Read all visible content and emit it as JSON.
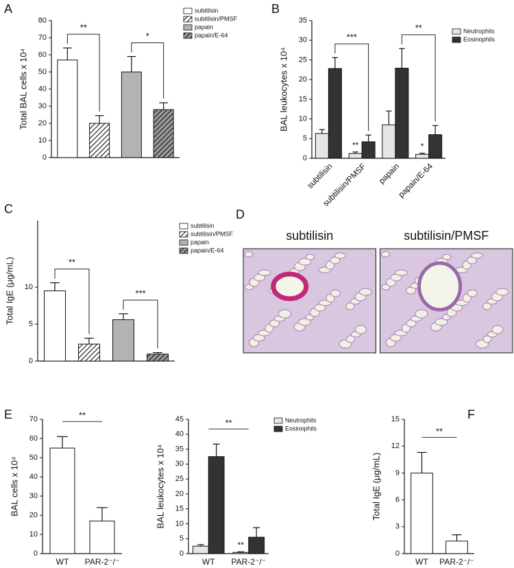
{
  "chart_data": [
    {
      "type": "bar",
      "label": "A",
      "y_label": "Total BAL cells x 10⁴",
      "ylim": [
        0,
        80
      ],
      "yticks": [
        0,
        10,
        20,
        30,
        40,
        50,
        60,
        70,
        80
      ],
      "series": [
        {
          "name": "subtilisin",
          "color": "#ffffff",
          "values": [
            57
          ],
          "errors": [
            7
          ]
        },
        {
          "name": "subtilisin/PMSF",
          "color": "#ffffff",
          "hatch": true,
          "values": [
            20
          ],
          "errors": [
            4.5
          ]
        },
        {
          "name": "papain",
          "color": "#b3b3b3",
          "values": [
            50
          ],
          "errors": [
            9
          ]
        },
        {
          "name": "papain/E-64",
          "color": "#9a9a9a",
          "hatch": true,
          "values": [
            28
          ],
          "errors": [
            4
          ]
        }
      ],
      "annotations": [
        {
          "text": "**",
          "between": [
            0,
            1
          ],
          "style": "bracket"
        },
        {
          "text": "*",
          "between": [
            2,
            3
          ],
          "style": "bracket"
        }
      ]
    },
    {
      "type": "bar",
      "label": "B",
      "y_label": "BAL leukocytes x 10⁴",
      "ylim": [
        0,
        35
      ],
      "yticks": [
        0,
        5,
        10,
        15,
        20,
        25,
        30,
        35
      ],
      "categories": [
        "subtilisin",
        "subtilisin/PMSF",
        "papain",
        "papain/E-64"
      ],
      "series": [
        {
          "name": "Neutrophils",
          "color": "#e6e6e6",
          "values": [
            6.3,
            1.2,
            8.5,
            1.0
          ],
          "errors": [
            1.0,
            0.4,
            3.5,
            0.3
          ]
        },
        {
          "name": "Eosinophils",
          "color": "#333333",
          "values": [
            22.8,
            4.2,
            22.9,
            6.0
          ],
          "errors": [
            2.8,
            1.7,
            5.0,
            2.3
          ]
        }
      ],
      "annotations": [
        {
          "text": "***",
          "between": [
            0,
            1
          ],
          "series": 1,
          "style": "bracket"
        },
        {
          "text": "**",
          "at": 1,
          "series": 0
        },
        {
          "text": "**",
          "between": [
            2,
            3
          ],
          "series": 1,
          "style": "bracket"
        },
        {
          "text": "*",
          "at": 3,
          "series": 0
        }
      ]
    },
    {
      "type": "bar",
      "label": "C",
      "y_label": "Total IgE (μg/mL)",
      "ylim": [
        0,
        19
      ],
      "yticks": [
        0,
        5,
        10
      ],
      "series": [
        {
          "name": "subtilisin",
          "color": "#ffffff",
          "values": [
            9.5
          ],
          "errors": [
            1.1
          ]
        },
        {
          "name": "subtilisin/PMSF",
          "color": "#ffffff",
          "hatch": true,
          "values": [
            2.3
          ],
          "errors": [
            0.8
          ]
        },
        {
          "name": "papain",
          "color": "#b3b3b3",
          "values": [
            5.6
          ],
          "errors": [
            0.8
          ]
        },
        {
          "name": "papain/E-64",
          "color": "#9a9a9a",
          "hatch": true,
          "values": [
            0.95
          ],
          "errors": [
            0.2
          ]
        }
      ],
      "annotations": [
        {
          "text": "**",
          "between": [
            0,
            1
          ],
          "style": "bracket"
        },
        {
          "text": "***",
          "between": [
            2,
            3
          ],
          "style": "bracket"
        }
      ]
    },
    {
      "type": "image",
      "label": "D",
      "captions": [
        "subtilisin",
        "subtilisin/PMSF"
      ]
    },
    {
      "type": "bar",
      "label": "E",
      "y_label": "BAL cells x 10⁴",
      "ylim": [
        0,
        70
      ],
      "yticks": [
        0,
        10,
        20,
        30,
        40,
        50,
        60,
        70
      ],
      "categories": [
        "WT",
        "PAR-2⁻/⁻"
      ],
      "values": [
        55,
        17
      ],
      "errors": [
        6,
        7
      ],
      "color": "#ffffff",
      "annotations": [
        {
          "text": "**",
          "between": [
            0,
            1
          ],
          "style": "line"
        }
      ]
    },
    {
      "type": "bar",
      "y_label": "BAL leukocytes x 10⁴",
      "ylim": [
        0,
        45
      ],
      "yticks": [
        0,
        5,
        10,
        15,
        20,
        25,
        30,
        35,
        40,
        45
      ],
      "categories": [
        "WT",
        "PAR-2⁻/⁻"
      ],
      "series": [
        {
          "name": "Neutrophils",
          "color": "#e6e6e6",
          "values": [
            2.5,
            0.4
          ],
          "errors": [
            0.5,
            0.2
          ]
        },
        {
          "name": "Eosinophils",
          "color": "#333333",
          "values": [
            32.5,
            5.5
          ],
          "errors": [
            4.2,
            3.2
          ]
        }
      ],
      "annotations": [
        {
          "text": "**",
          "between": [
            0,
            1
          ],
          "style": "line"
        },
        {
          "text": "**",
          "at": 1,
          "series": 0
        }
      ]
    },
    {
      "type": "bar",
      "label": "F",
      "y_label": "Total IgE (μg/mL)",
      "ylim": [
        0,
        15
      ],
      "yticks": [
        0,
        3,
        6,
        9,
        12,
        15
      ],
      "categories": [
        "WT",
        "PAR-2⁻/⁻"
      ],
      "values": [
        9,
        1.4
      ],
      "errors": [
        2.3,
        0.7
      ],
      "color": "#ffffff",
      "annotations": [
        {
          "text": "**",
          "between": [
            0,
            1
          ],
          "style": "line"
        }
      ]
    }
  ]
}
